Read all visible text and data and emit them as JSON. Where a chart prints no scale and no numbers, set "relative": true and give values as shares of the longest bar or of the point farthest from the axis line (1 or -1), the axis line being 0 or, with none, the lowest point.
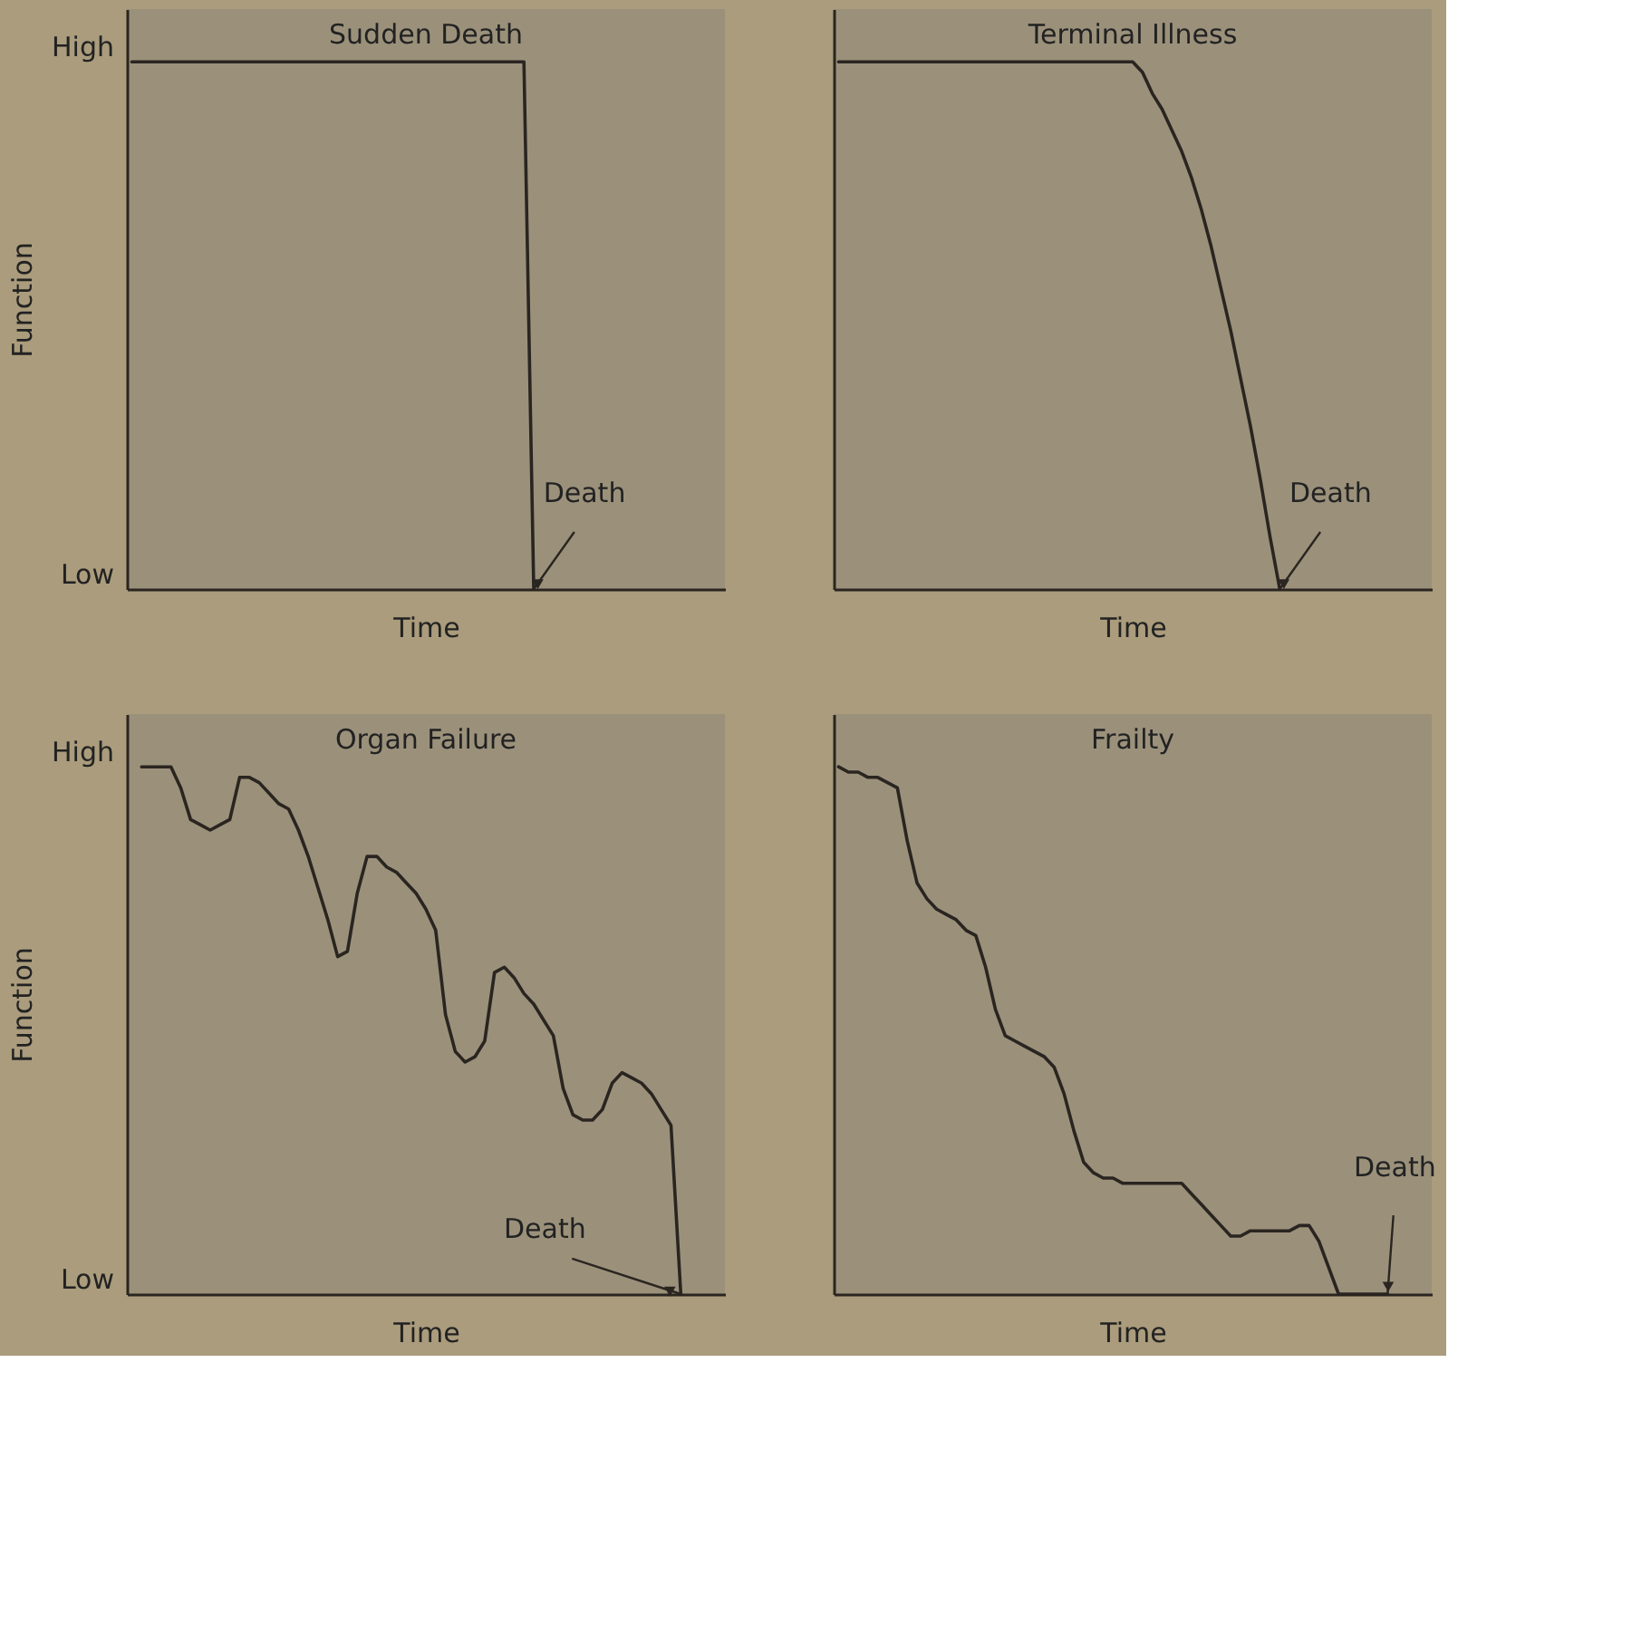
{
  "chart_data": [
    {
      "type": "line",
      "title": "Sudden Death",
      "xlabel": "Time",
      "ylabel": "Function",
      "relative": true,
      "categories": [
        null,
        null,
        null,
        null,
        null,
        null,
        null,
        null,
        null,
        null,
        null,
        null,
        null,
        null,
        null,
        null,
        null,
        null,
        null,
        null,
        null,
        null,
        null,
        null,
        null,
        null,
        null,
        null,
        null,
        null,
        null,
        null,
        null,
        null,
        null,
        null,
        null,
        null,
        null,
        null,
        null,
        null,
        null,
        null,
        null,
        null,
        null,
        null,
        null,
        null,
        null,
        null,
        null,
        null,
        null,
        null,
        null,
        null,
        null,
        null,
        null
      ],
      "series": [
        {
          "color": "#2a2520",
          "values": [
            1,
            1,
            1,
            1,
            1,
            1,
            1,
            1,
            1,
            1,
            1,
            1,
            1,
            1,
            1,
            1,
            1,
            1,
            1,
            1,
            1,
            1,
            1,
            1,
            1,
            1,
            1,
            1,
            1,
            1,
            1,
            1,
            1,
            1,
            1,
            1,
            1,
            1,
            1,
            1,
            1,
            0,
            null,
            null,
            null,
            null,
            null,
            null,
            null,
            null,
            null,
            null,
            null,
            null,
            null,
            null,
            null,
            null,
            null,
            null,
            null
          ]
        }
      ],
      "annotations": [
        "High",
        "Low",
        "Death"
      ]
    },
    {
      "type": "line",
      "title": "Terminal Illness",
      "xlabel": "Time",
      "relative": true,
      "categories": [
        null,
        null,
        null,
        null,
        null,
        null,
        null,
        null,
        null,
        null,
        null,
        null,
        null,
        null,
        null,
        null,
        null,
        null,
        null,
        null,
        null,
        null,
        null,
        null,
        null,
        null,
        null,
        null,
        null,
        null,
        null,
        null,
        null,
        null,
        null,
        null,
        null,
        null,
        null,
        null,
        null,
        null,
        null,
        null,
        null,
        null,
        null,
        null,
        null,
        null,
        null,
        null,
        null,
        null,
        null,
        null,
        null,
        null,
        null,
        null,
        null
      ],
      "series": [
        {
          "color": "#2a2520",
          "values": [
            1,
            1,
            1,
            1,
            1,
            1,
            1,
            1,
            1,
            1,
            1,
            1,
            1,
            1,
            1,
            1,
            1,
            1,
            1,
            1,
            1,
            1,
            1,
            1,
            1,
            1,
            1,
            1,
            1,
            1,
            1,
            0.98,
            0.94,
            0.91,
            0.87,
            0.83,
            0.78,
            0.72,
            0.65,
            0.57,
            0.49,
            0.4,
            0.31,
            0.21,
            0.1,
            0,
            null,
            null,
            null,
            null,
            null,
            null,
            null,
            null,
            null,
            null,
            null,
            null,
            null,
            null,
            null
          ]
        }
      ],
      "annotations": [
        "Death"
      ]
    },
    {
      "type": "line",
      "title": "Organ Failure",
      "xlabel": "Time",
      "ylabel": "Function",
      "relative": true,
      "categories": [
        null,
        null,
        null,
        null,
        null,
        null,
        null,
        null,
        null,
        null,
        null,
        null,
        null,
        null,
        null,
        null,
        null,
        null,
        null,
        null,
        null,
        null,
        null,
        null,
        null,
        null,
        null,
        null,
        null,
        null,
        null,
        null,
        null,
        null,
        null,
        null,
        null,
        null,
        null,
        null,
        null,
        null,
        null,
        null,
        null,
        null,
        null,
        null,
        null,
        null,
        null,
        null,
        null,
        null,
        null,
        null,
        null,
        null,
        null,
        null,
        null
      ],
      "series": [
        {
          "color": "#2a2520",
          "values": [
            null,
            1,
            1,
            1,
            1,
            0.96,
            0.9,
            0.89,
            0.88,
            0.89,
            0.9,
            0.98,
            0.98,
            0.97,
            0.95,
            0.93,
            0.92,
            0.88,
            0.83,
            0.77,
            0.71,
            0.64,
            0.65,
            0.76,
            0.83,
            0.83,
            0.81,
            0.8,
            0.78,
            0.76,
            0.73,
            0.69,
            0.53,
            0.46,
            0.44,
            0.45,
            0.48,
            0.61,
            0.62,
            0.6,
            0.57,
            0.55,
            0.52,
            0.49,
            0.39,
            0.34,
            0.33,
            0.33,
            0.35,
            0.4,
            0.42,
            0.41,
            0.4,
            0.38,
            0.35,
            0.32,
            0,
            null,
            null,
            null,
            null
          ]
        }
      ],
      "annotations": [
        "High",
        "Low",
        "Death"
      ]
    },
    {
      "type": "line",
      "title": "Frailty",
      "xlabel": "Time",
      "relative": true,
      "categories": [
        null,
        null,
        null,
        null,
        null,
        null,
        null,
        null,
        null,
        null,
        null,
        null,
        null,
        null,
        null,
        null,
        null,
        null,
        null,
        null,
        null,
        null,
        null,
        null,
        null,
        null,
        null,
        null,
        null,
        null,
        null,
        null,
        null,
        null,
        null,
        null,
        null,
        null,
        null,
        null,
        null,
        null,
        null,
        null,
        null,
        null,
        null,
        null,
        null,
        null,
        null,
        null,
        null,
        null,
        null,
        null,
        null,
        null,
        null,
        null,
        null
      ],
      "series": [
        {
          "color": "#2a2520",
          "values": [
            1,
            0.99,
            0.99,
            0.98,
            0.98,
            0.97,
            0.96,
            0.86,
            0.78,
            0.75,
            0.73,
            0.72,
            0.71,
            0.69,
            0.68,
            0.62,
            0.54,
            0.49,
            0.48,
            0.47,
            0.46,
            0.45,
            0.43,
            0.38,
            0.31,
            0.25,
            0.23,
            0.22,
            0.22,
            0.21,
            0.21,
            0.21,
            0.21,
            0.21,
            0.21,
            0.21,
            0.19,
            0.17,
            0.15,
            0.13,
            0.11,
            0.11,
            0.12,
            0.12,
            0.12,
            0.12,
            0.12,
            0.13,
            0.13,
            0.1,
            0.05,
            0,
            0,
            0,
            0,
            0,
            0,
            null,
            null,
            null,
            null
          ]
        }
      ],
      "annotations": [
        "Death"
      ]
    }
  ]
}
